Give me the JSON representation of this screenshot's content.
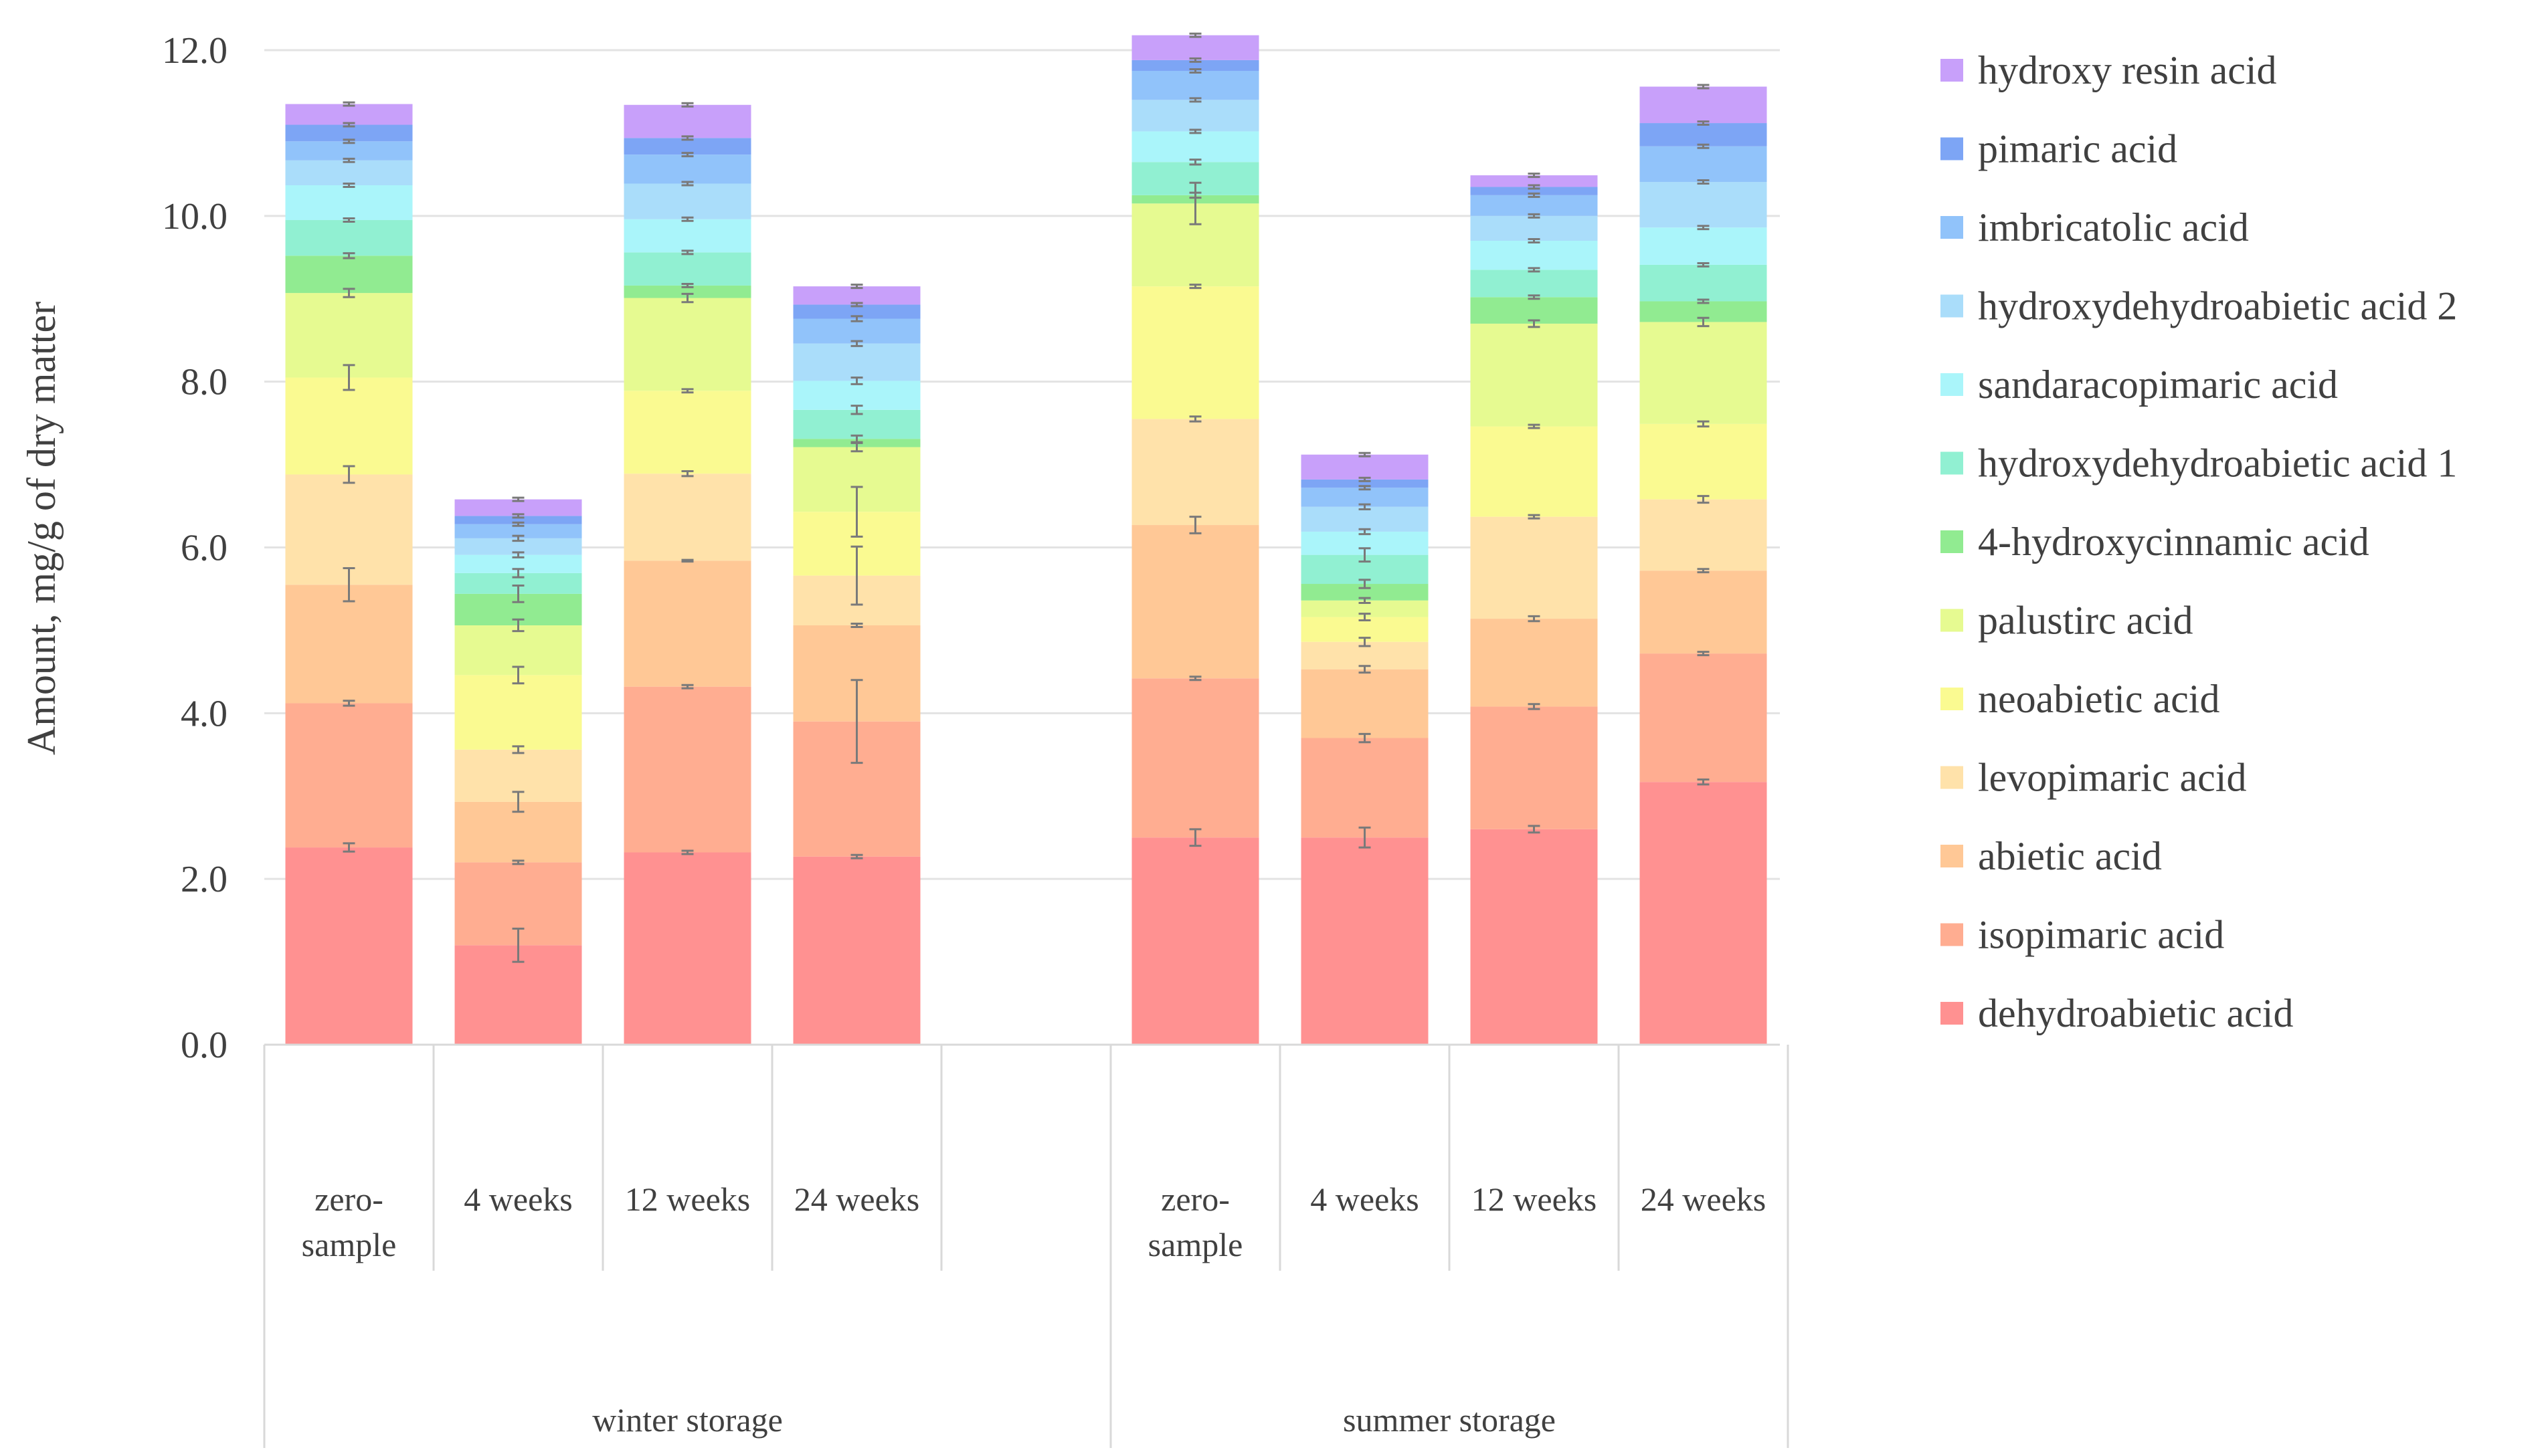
{
  "chart_data": {
    "type": "bar",
    "stacked": true,
    "ylabel": "Amount, mg/g of dry matter",
    "ylim": [
      0,
      12
    ],
    "yticks": [
      "0.0",
      "2.0",
      "4.0",
      "6.0",
      "8.0",
      "10.0",
      "12.0"
    ],
    "grid": true,
    "legend_position": "right",
    "groups": [
      {
        "label": "winter storage",
        "categories": [
          [
            "zero-",
            "sample"
          ],
          [
            "4 weeks"
          ],
          [
            "12 weeks"
          ],
          [
            "24 weeks"
          ]
        ]
      },
      {
        "label": "summer storage",
        "categories": [
          [
            "zero-",
            "sample"
          ],
          [
            "4 weeks"
          ],
          [
            "12 weeks"
          ],
          [
            "24 weeks"
          ]
        ]
      }
    ],
    "series": [
      {
        "name": "dehydroabietic acid",
        "color": "#ff9191",
        "values": [
          2.38,
          1.2,
          2.32,
          2.27,
          2.5,
          2.5,
          2.6,
          3.17
        ],
        "errors": [
          0.05,
          0.2,
          0.02,
          0.02,
          0.1,
          0.12,
          0.04,
          0.03
        ]
      },
      {
        "name": "isopimaric acid",
        "color": "#ffad91",
        "values": [
          1.74,
          1.0,
          2.0,
          1.63,
          1.92,
          1.2,
          1.48,
          1.55
        ],
        "errors": [
          0.03,
          0.02,
          0.02,
          0.5,
          0.02,
          0.05,
          0.03,
          0.02
        ]
      },
      {
        "name": "abietic acid",
        "color": "#ffc896",
        "values": [
          1.43,
          0.73,
          1.52,
          1.16,
          1.85,
          0.83,
          1.06,
          1.0
        ],
        "errors": [
          0.2,
          0.12,
          0.01,
          0.02,
          0.1,
          0.04,
          0.03,
          0.02
        ]
      },
      {
        "name": "levopimaric acid",
        "color": "#ffe2aa",
        "values": [
          1.33,
          0.63,
          1.05,
          0.6,
          1.28,
          0.33,
          1.23,
          0.86
        ],
        "errors": [
          0.1,
          0.04,
          0.03,
          0.35,
          0.03,
          0.05,
          0.02,
          0.04
        ]
      },
      {
        "name": "neoabietic acid",
        "color": "#fafa91",
        "values": [
          1.17,
          0.9,
          1.0,
          0.77,
          1.6,
          0.3,
          1.09,
          0.91
        ],
        "errors": [
          0.15,
          0.1,
          0.02,
          0.3,
          0.02,
          0.04,
          0.02,
          0.03
        ]
      },
      {
        "name": "palustirc acid",
        "color": "#e6fa91",
        "values": [
          1.02,
          0.6,
          1.12,
          0.78,
          1.0,
          0.2,
          1.24,
          1.23
        ],
        "errors": [
          0.05,
          0.07,
          0.05,
          0.05,
          0.25,
          0.03,
          0.04,
          0.05
        ]
      },
      {
        "name": "4-hydroxycinnamic acid",
        "color": "#91eb91",
        "values": [
          0.45,
          0.38,
          0.15,
          0.1,
          0.1,
          0.2,
          0.32,
          0.25
        ],
        "errors": [
          0.03,
          0.1,
          0.02,
          0.04,
          0.03,
          0.05,
          0.02,
          0.02
        ]
      },
      {
        "name": "hydroxydehydroabietic acid 1",
        "color": "#91f0d2",
        "values": [
          0.43,
          0.25,
          0.4,
          0.35,
          0.4,
          0.35,
          0.33,
          0.44
        ],
        "errors": [
          0.02,
          0.05,
          0.02,
          0.05,
          0.03,
          0.08,
          0.02,
          0.02
        ]
      },
      {
        "name": "sandaracopimaric acid",
        "color": "#aaf5fa",
        "values": [
          0.42,
          0.22,
          0.4,
          0.35,
          0.37,
          0.28,
          0.35,
          0.45
        ],
        "errors": [
          0.02,
          0.03,
          0.02,
          0.04,
          0.02,
          0.03,
          0.02,
          0.02
        ]
      },
      {
        "name": "hydroxydehydroabietic acid 2",
        "color": "#aaddfa",
        "values": [
          0.3,
          0.2,
          0.43,
          0.45,
          0.38,
          0.3,
          0.3,
          0.55
        ],
        "errors": [
          0.02,
          0.03,
          0.02,
          0.03,
          0.02,
          0.03,
          0.02,
          0.02
        ]
      },
      {
        "name": "imbricatolic acid",
        "color": "#91c3fa",
        "values": [
          0.23,
          0.17,
          0.35,
          0.3,
          0.35,
          0.23,
          0.25,
          0.43
        ],
        "errors": [
          0.02,
          0.02,
          0.02,
          0.03,
          0.02,
          0.02,
          0.02,
          0.02
        ]
      },
      {
        "name": "pimaric acid",
        "color": "#7da5f5",
        "values": [
          0.2,
          0.1,
          0.2,
          0.17,
          0.13,
          0.1,
          0.1,
          0.28
        ],
        "errors": [
          0.02,
          0.02,
          0.02,
          0.02,
          0.02,
          0.02,
          0.02,
          0.02
        ]
      },
      {
        "name": "hydroxy resin acid",
        "color": "#c8a0fa",
        "values": [
          0.25,
          0.2,
          0.4,
          0.22,
          0.3,
          0.3,
          0.14,
          0.44
        ],
        "errors": [
          0.02,
          0.02,
          0.02,
          0.02,
          0.02,
          0.02,
          0.02,
          0.02
        ]
      }
    ]
  }
}
